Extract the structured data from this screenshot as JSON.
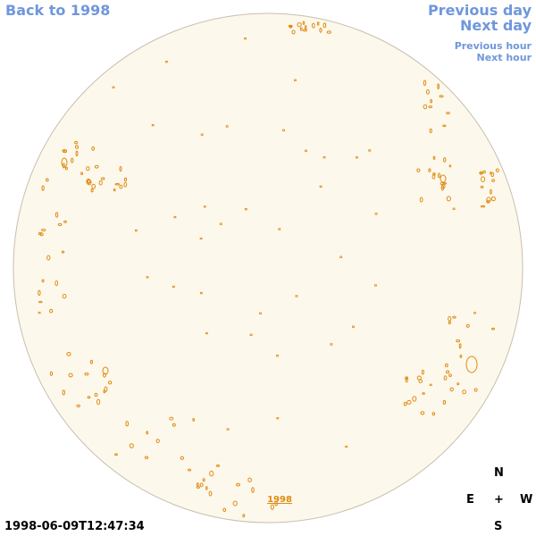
{
  "nav": {
    "back": "Back to 1998",
    "previous_day": "Previous day",
    "next_day": "Next day",
    "previous_hour": "Previous hour",
    "next_hour": "Next hour"
  },
  "map": {
    "year_label": "1998",
    "timestamp": "1998-06-09T12:47:34",
    "disk_color": "#fdf8ec",
    "feature_color": "#e08a10",
    "link_color": "#6f97dc"
  },
  "compass": {
    "north": "N",
    "east": "E",
    "center": "+",
    "west": "W",
    "south": "S"
  }
}
